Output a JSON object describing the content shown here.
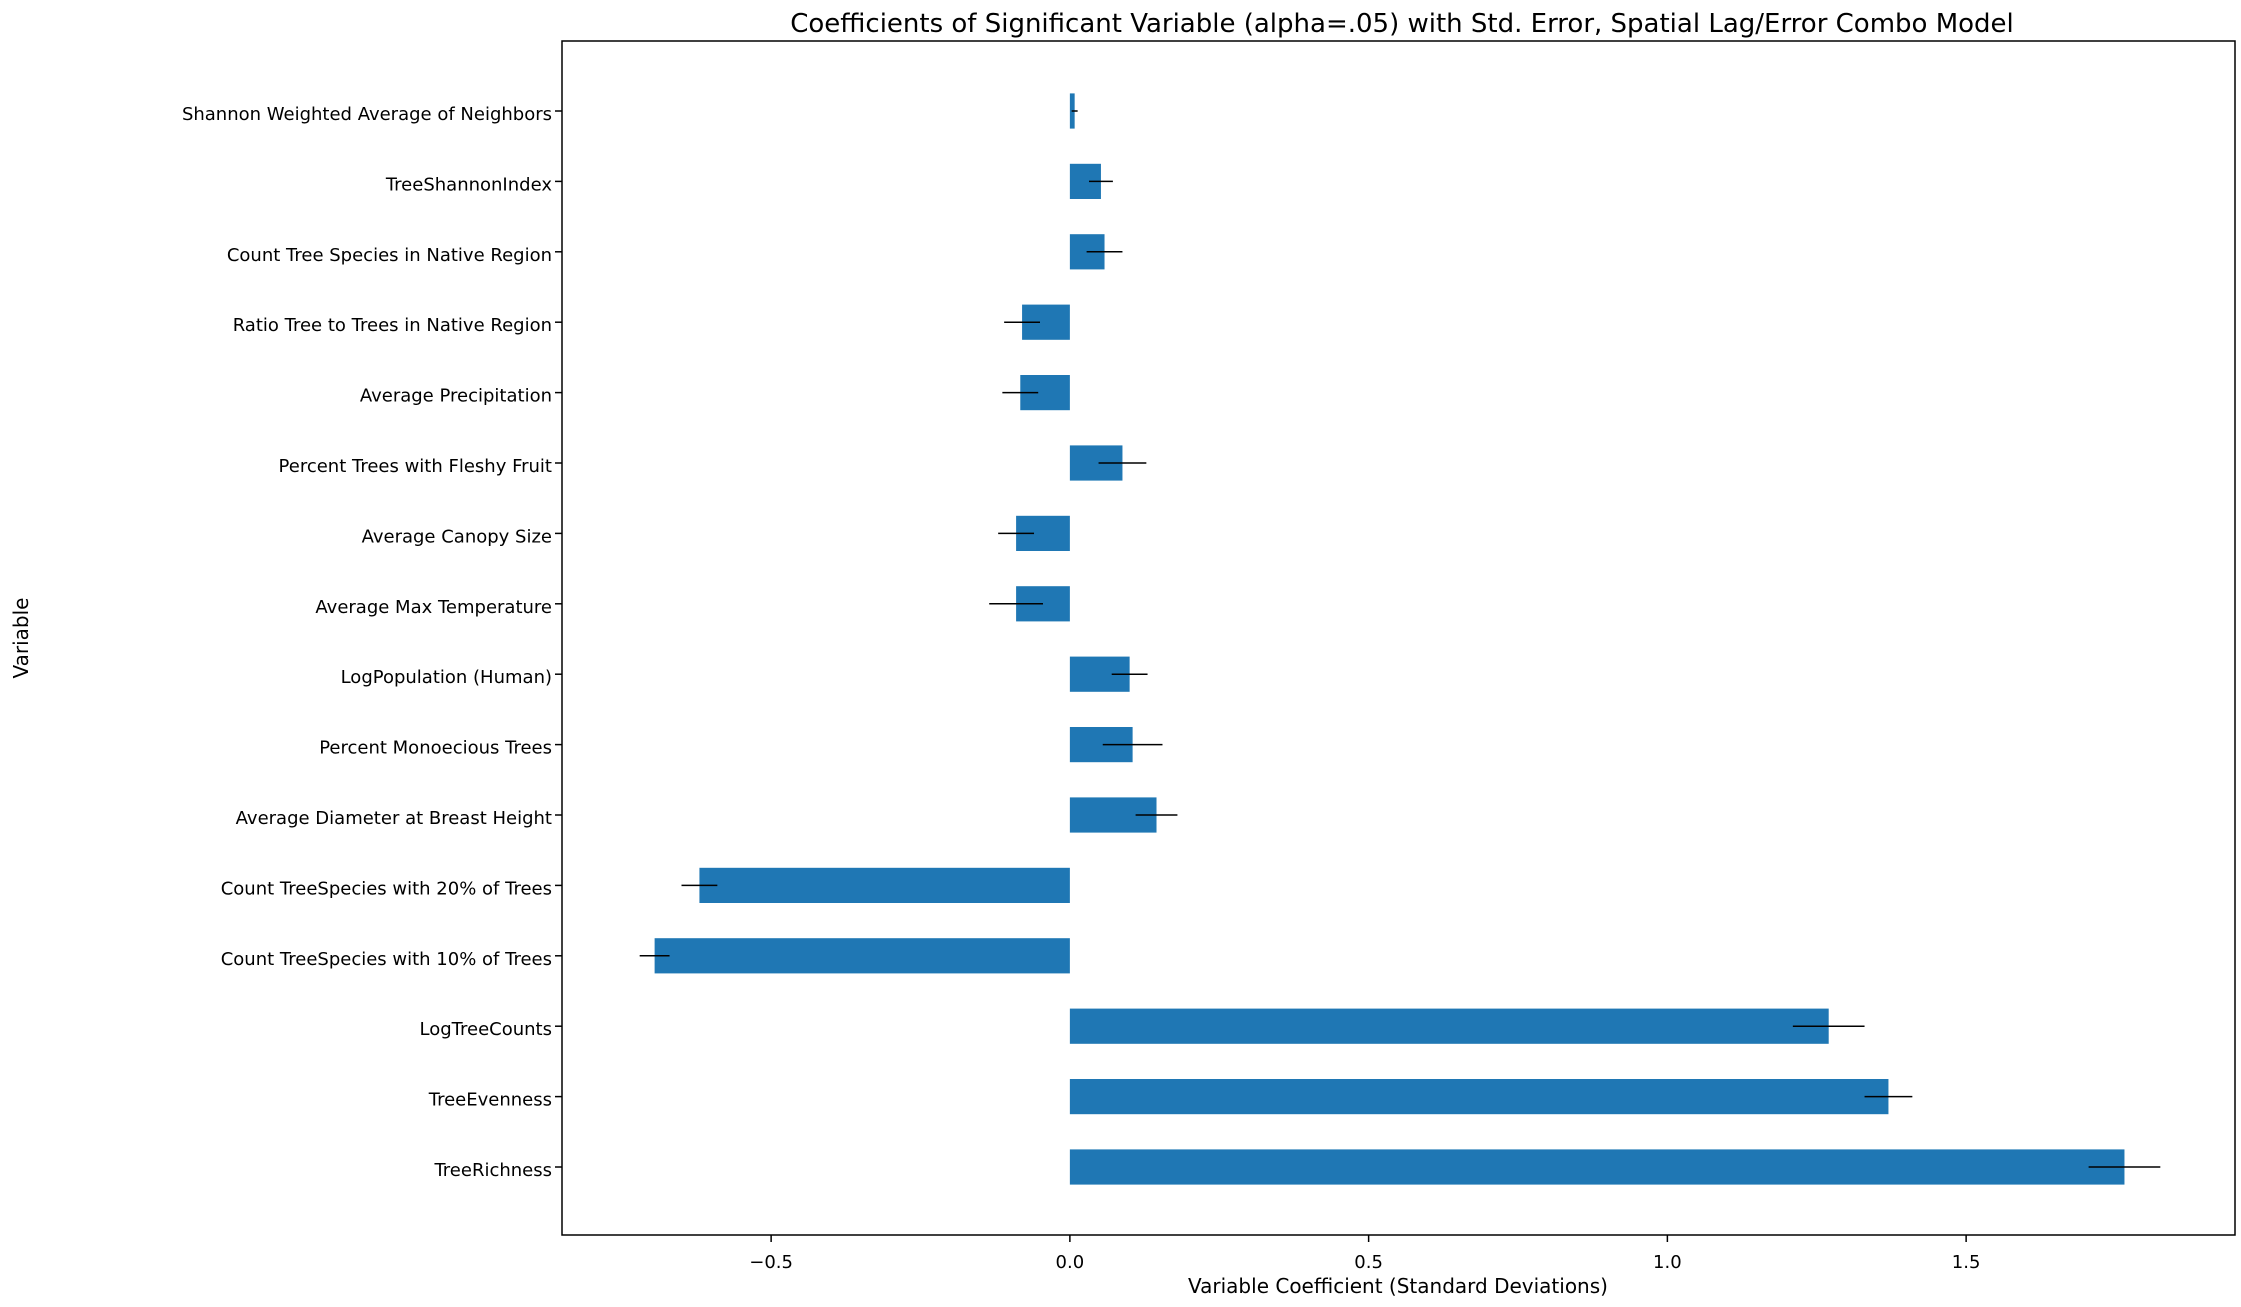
{
  "chart_data": {
    "type": "bar",
    "orientation": "horizontal",
    "title": "Coefficients of Significant Variable (alpha=.05) with Std. Error, Spatial Lag/Error Combo Model",
    "xlabel": "Variable Coefficient (Standard Deviations)",
    "ylabel": "Variable",
    "xlim": [
      -0.85,
      1.95
    ],
    "xticks": [
      -0.5,
      0.0,
      0.5,
      1.0,
      1.5
    ],
    "xtick_labels": [
      "−0.5",
      "0.0",
      "0.5",
      "1.0",
      "1.5"
    ],
    "bar_color": "#1f77b4",
    "errorbar_color": "#000000",
    "grid": false,
    "categories": [
      "TreeRichness",
      "TreeEvenness",
      "LogTreeCounts",
      "Count TreeSpecies with 10% of Trees",
      "Count TreeSpecies with 20% of Trees",
      "Average Diameter at Breast Height",
      "Percent Monoecious Trees",
      "LogPopulation (Human)",
      "Average Max Temperature",
      "Average Canopy Size",
      "Percent Trees with Fleshy Fruit",
      "Average Precipitation",
      "Ratio Tree to Trees in Native Region",
      "Count Tree Species in Native Region",
      "TreeShannonIndex",
      "Shannon Weighted Average of Neighbors"
    ],
    "values": [
      1.765,
      1.37,
      1.27,
      -0.695,
      -0.62,
      0.145,
      0.105,
      0.1,
      -0.09,
      -0.09,
      0.088,
      -0.083,
      -0.08,
      0.058,
      0.052,
      0.008
    ],
    "std_errors": [
      0.06,
      0.04,
      0.06,
      0.025,
      0.03,
      0.035,
      0.05,
      0.03,
      0.045,
      0.03,
      0.04,
      0.03,
      0.03,
      0.03,
      0.02,
      0.005
    ]
  }
}
